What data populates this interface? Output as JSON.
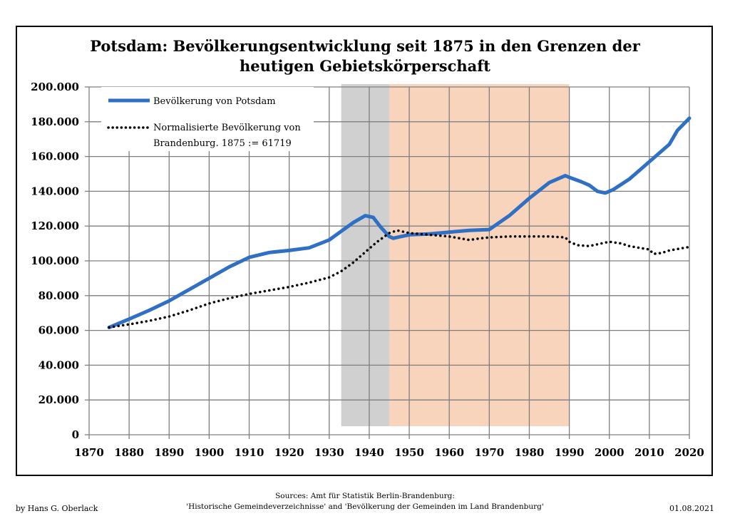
{
  "chart_data": {
    "type": "line",
    "title_line1": "Potsdam: Bevölkerungsentwicklung seit 1875 in den Grenzen der",
    "title_line2": "heutigen Gebietskörperschaft",
    "xlim": [
      1870,
      2020
    ],
    "ylim": [
      0,
      200000
    ],
    "x_ticks": [
      "1870",
      "1880",
      "1890",
      "1900",
      "1910",
      "1920",
      "1930",
      "1940",
      "1950",
      "1960",
      "1970",
      "1980",
      "1990",
      "2000",
      "2010",
      "2020"
    ],
    "y_ticks": [
      "200.000",
      "180.000",
      "160.000",
      "140.000",
      "120.000",
      "100.000",
      "80.000",
      "60.000",
      "40.000",
      "20.000",
      "0"
    ],
    "grid": true,
    "legend_position": "top-left",
    "shaded_periods": [
      {
        "from": 1933,
        "to": 1945,
        "color": "#c8c8c8"
      },
      {
        "from": 1945,
        "to": 1990,
        "color": "#f7ccb0"
      }
    ],
    "series": [
      {
        "name": "Bevölkerung von Potsdam",
        "color": "#2f6fc4",
        "style": "solid",
        "points": [
          [
            1875,
            61719
          ],
          [
            1880,
            66500
          ],
          [
            1885,
            71500
          ],
          [
            1890,
            77000
          ],
          [
            1895,
            83500
          ],
          [
            1900,
            90000
          ],
          [
            1905,
            96500
          ],
          [
            1910,
            102000
          ],
          [
            1915,
            104800
          ],
          [
            1920,
            106000
          ],
          [
            1925,
            107500
          ],
          [
            1930,
            112000
          ],
          [
            1933,
            117000
          ],
          [
            1936,
            122000
          ],
          [
            1939,
            126000
          ],
          [
            1941,
            125000
          ],
          [
            1943,
            119000
          ],
          [
            1945,
            114000
          ],
          [
            1946,
            113000
          ],
          [
            1948,
            114000
          ],
          [
            1950,
            115000
          ],
          [
            1955,
            115500
          ],
          [
            1960,
            116500
          ],
          [
            1965,
            117500
          ],
          [
            1970,
            118000
          ],
          [
            1975,
            126000
          ],
          [
            1980,
            136000
          ],
          [
            1985,
            145000
          ],
          [
            1989,
            149000
          ],
          [
            1990,
            148000
          ],
          [
            1993,
            145500
          ],
          [
            1995,
            143500
          ],
          [
            1997,
            140000
          ],
          [
            1999,
            139000
          ],
          [
            2001,
            141000
          ],
          [
            2005,
            147000
          ],
          [
            2010,
            157000
          ],
          [
            2013,
            163000
          ],
          [
            2015,
            167000
          ],
          [
            2017,
            175000
          ],
          [
            2020,
            182000
          ]
        ]
      },
      {
        "name": "Normalisierte Bevölkerung von Brandenburg. 1875 := 61719",
        "legend_line1": "Normalisierte Bevölkerung von",
        "legend_line2": "Brandenburg. 1875 := 61719",
        "color": "#000000",
        "style": "dotted",
        "points": [
          [
            1875,
            61719
          ],
          [
            1880,
            63500
          ],
          [
            1885,
            65500
          ],
          [
            1890,
            68000
          ],
          [
            1895,
            71500
          ],
          [
            1900,
            75500
          ],
          [
            1905,
            78500
          ],
          [
            1910,
            81000
          ],
          [
            1915,
            83000
          ],
          [
            1920,
            85000
          ],
          [
            1925,
            87500
          ],
          [
            1930,
            90500
          ],
          [
            1933,
            94000
          ],
          [
            1936,
            99000
          ],
          [
            1939,
            105000
          ],
          [
            1942,
            111000
          ],
          [
            1945,
            116000
          ],
          [
            1947,
            117500
          ],
          [
            1950,
            116000
          ],
          [
            1955,
            115000
          ],
          [
            1960,
            114000
          ],
          [
            1965,
            112000
          ],
          [
            1968,
            113000
          ],
          [
            1970,
            113500
          ],
          [
            1975,
            114000
          ],
          [
            1980,
            114000
          ],
          [
            1985,
            114000
          ],
          [
            1989,
            113500
          ],
          [
            1990,
            111000
          ],
          [
            1992,
            109000
          ],
          [
            1995,
            108500
          ],
          [
            1997,
            109500
          ],
          [
            2000,
            111000
          ],
          [
            2003,
            110000
          ],
          [
            2005,
            108500
          ],
          [
            2010,
            106500
          ],
          [
            2011,
            104000
          ],
          [
            2013,
            104500
          ],
          [
            2015,
            106000
          ],
          [
            2020,
            108000
          ]
        ]
      }
    ]
  },
  "footer": {
    "author": "by Hans G. Oberlack",
    "sources_line1": "Sources: Amt für Statistik Berlin-Brandenburg:",
    "sources_line2": "'Historische Gemeindeverzeichnisse' and 'Bevölkerung der Gemeinden im Land Brandenburg'",
    "date": "01.08.2021"
  }
}
